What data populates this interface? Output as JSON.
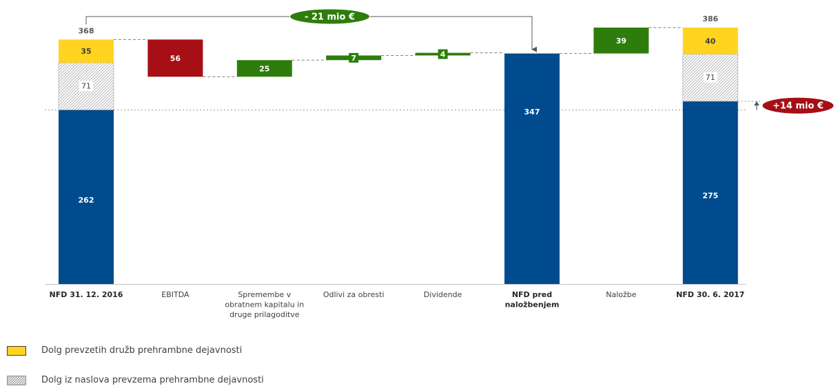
{
  "chart_data": {
    "type": "waterfall",
    "categories": [
      "NFD 31. 12. 2016",
      "EBITDA",
      "Spremembe v obratnem kapitalu in druge prilagoditve",
      "Odlivi za obresti",
      "Dividende",
      "NFD pred naložbenjem",
      "Naložbe",
      "NFD 30. 6. 2017"
    ],
    "bold_categories": [
      true,
      false,
      false,
      false,
      false,
      true,
      false,
      true
    ],
    "ylim": [
      0,
      386
    ],
    "bars": [
      {
        "category": "NFD 31. 12. 2016",
        "kind": "stacked_total",
        "total": 368,
        "segments": [
          {
            "series": "base",
            "value": 262
          },
          {
            "series": "hatch",
            "value": 71
          },
          {
            "series": "yellow",
            "value": 35
          }
        ]
      },
      {
        "category": "EBITDA",
        "kind": "delta",
        "value": -56,
        "display": "56",
        "color": "red"
      },
      {
        "category": "Spremembe v obratnem kapitalu in druge prilagoditve",
        "kind": "delta",
        "value": 25,
        "display": "25",
        "color": "green"
      },
      {
        "category": "Odlivi za obresti",
        "kind": "delta",
        "value": 7,
        "display": "7",
        "color": "green"
      },
      {
        "category": "Dividende",
        "kind": "delta",
        "value": 4,
        "display": "4",
        "color": "green"
      },
      {
        "category": "NFD pred naložbenjem",
        "kind": "total",
        "value": 347,
        "display": "347"
      },
      {
        "category": "Naložbe",
        "kind": "delta",
        "value": 39,
        "display": "39",
        "color": "green"
      },
      {
        "category": "NFD 30. 6. 2017",
        "kind": "stacked_total",
        "total": 386,
        "segments": [
          {
            "series": "base",
            "value": 275
          },
          {
            "series": "hatch",
            "value": 71
          },
          {
            "series": "yellow",
            "value": 40
          }
        ]
      }
    ],
    "annotations": [
      {
        "text": "-  21 mio €",
        "from": "NFD 31. 12. 2016",
        "to": "NFD pred naložbenjem",
        "color": "green"
      },
      {
        "text": "+14 mio €",
        "from_value": 262,
        "to_value": 275,
        "color": "red"
      }
    ],
    "legend": [
      {
        "label": "Dolg prevzetih družb prehrambne dejavnosti",
        "series": "yellow"
      },
      {
        "label": "Dolg iz naslova prevzema prehrambne dejavnosti",
        "series": "hatch"
      }
    ],
    "colors": {
      "base": "#004B8D",
      "yellow": "#FFD320",
      "red": "#A50F15",
      "green": "#2E7D0C",
      "hatch": "#8C8C8C"
    }
  }
}
